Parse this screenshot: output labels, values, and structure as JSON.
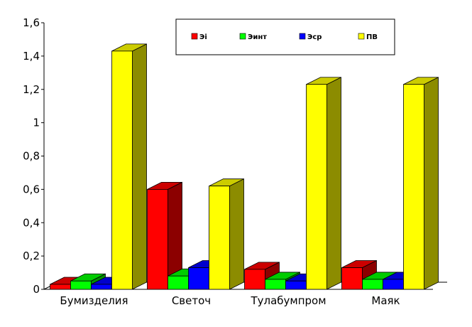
{
  "chart_data": {
    "type": "bar",
    "title": "",
    "xlabel": "",
    "ylabel": "",
    "categories": [
      "Бумизделия",
      "Светоч",
      "Тулабумпром",
      "Маяк"
    ],
    "series": [
      {
        "name": "Эi",
        "color": "#ff0000",
        "values": [
          0.03,
          0.6,
          0.12,
          0.13
        ]
      },
      {
        "name": "Эинт",
        "color": "#00ff00",
        "values": [
          0.05,
          0.08,
          0.06,
          0.06
        ]
      },
      {
        "name": "Эср",
        "color": "#0000ff",
        "values": [
          0.03,
          0.13,
          0.05,
          0.06
        ]
      },
      {
        "name": "ПВ",
        "color": "#ffff00",
        "values": [
          1.43,
          0.62,
          1.23,
          1.23
        ]
      }
    ],
    "ylim": [
      0,
      1.6
    ],
    "yticks": [
      "0",
      "0,2",
      "0,4",
      "0,6",
      "0,8",
      "1",
      "1,2",
      "1,4",
      "1,6"
    ],
    "grid": false,
    "three_d": true,
    "legend_position": "top"
  }
}
